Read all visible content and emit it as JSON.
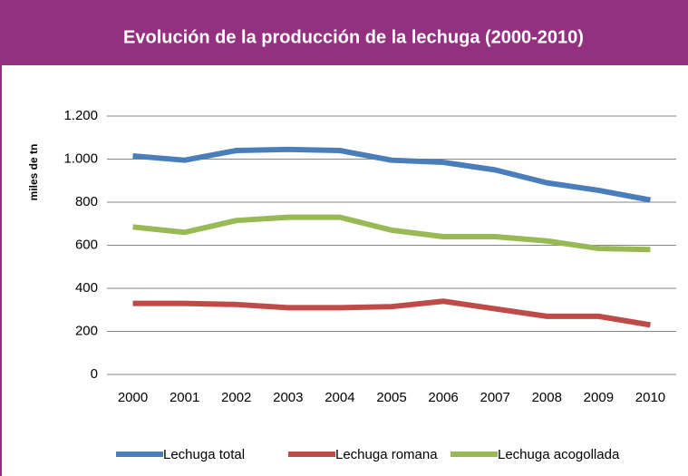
{
  "chart_data": {
    "type": "line",
    "title": "Evolución de la producción de la lechuga (2000-2010)",
    "y_label": "miles de tn",
    "categories": [
      "2000",
      "2001",
      "2002",
      "2003",
      "2004",
      "2005",
      "2006",
      "2007",
      "2008",
      "2009",
      "2010"
    ],
    "series": [
      {
        "name": "Lechuga total",
        "color": "#4a7ebb",
        "values": [
          1015,
          995,
          1040,
          1045,
          1040,
          995,
          985,
          950,
          890,
          855,
          810
        ]
      },
      {
        "name": "Lechuga romana",
        "color": "#be4b48",
        "values": [
          330,
          330,
          325,
          310,
          310,
          315,
          340,
          305,
          270,
          270,
          230
        ]
      },
      {
        "name": "Lechuga acogollada",
        "color": "#98b954",
        "values": [
          685,
          660,
          715,
          730,
          730,
          670,
          640,
          640,
          620,
          585,
          580
        ]
      }
    ],
    "ylim": [
      0,
      1200
    ],
    "yticks": [
      0,
      200,
      400,
      600,
      800,
      {
        "value": 1000,
        "label": "1.000"
      },
      {
        "value": 1200,
        "label": "1.200"
      }
    ],
    "grid": true,
    "legend": "bottom"
  }
}
